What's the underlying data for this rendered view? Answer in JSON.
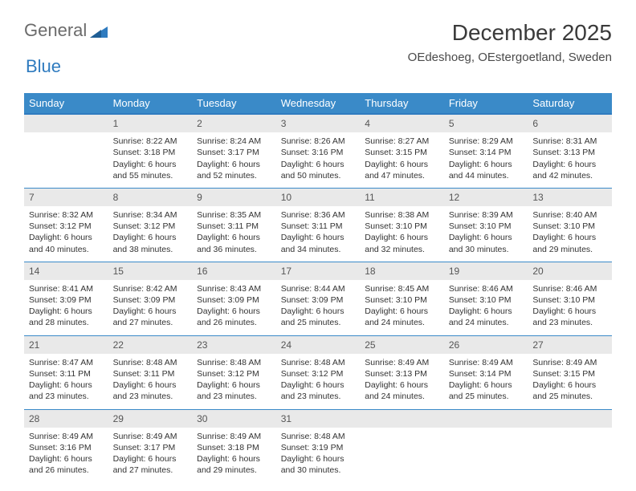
{
  "logo": {
    "text1": "General",
    "text2": "Blue",
    "icon_color": "#2f7bbf"
  },
  "title": "December 2025",
  "location": "OEdeshoeg, OEstergoetland, Sweden",
  "day_headers": [
    "Sunday",
    "Monday",
    "Tuesday",
    "Wednesday",
    "Thursday",
    "Friday",
    "Saturday"
  ],
  "colors": {
    "header_bg": "#3a8ac8",
    "header_border": "#2f7bbf",
    "daynum_bg": "#e9e9e9",
    "text": "#333333"
  },
  "weeks": [
    [
      {
        "n": "",
        "sr": "",
        "ss": "",
        "dl": ""
      },
      {
        "n": "1",
        "sr": "Sunrise: 8:22 AM",
        "ss": "Sunset: 3:18 PM",
        "dl": "Daylight: 6 hours and 55 minutes."
      },
      {
        "n": "2",
        "sr": "Sunrise: 8:24 AM",
        "ss": "Sunset: 3:17 PM",
        "dl": "Daylight: 6 hours and 52 minutes."
      },
      {
        "n": "3",
        "sr": "Sunrise: 8:26 AM",
        "ss": "Sunset: 3:16 PM",
        "dl": "Daylight: 6 hours and 50 minutes."
      },
      {
        "n": "4",
        "sr": "Sunrise: 8:27 AM",
        "ss": "Sunset: 3:15 PM",
        "dl": "Daylight: 6 hours and 47 minutes."
      },
      {
        "n": "5",
        "sr": "Sunrise: 8:29 AM",
        "ss": "Sunset: 3:14 PM",
        "dl": "Daylight: 6 hours and 44 minutes."
      },
      {
        "n": "6",
        "sr": "Sunrise: 8:31 AM",
        "ss": "Sunset: 3:13 PM",
        "dl": "Daylight: 6 hours and 42 minutes."
      }
    ],
    [
      {
        "n": "7",
        "sr": "Sunrise: 8:32 AM",
        "ss": "Sunset: 3:12 PM",
        "dl": "Daylight: 6 hours and 40 minutes."
      },
      {
        "n": "8",
        "sr": "Sunrise: 8:34 AM",
        "ss": "Sunset: 3:12 PM",
        "dl": "Daylight: 6 hours and 38 minutes."
      },
      {
        "n": "9",
        "sr": "Sunrise: 8:35 AM",
        "ss": "Sunset: 3:11 PM",
        "dl": "Daylight: 6 hours and 36 minutes."
      },
      {
        "n": "10",
        "sr": "Sunrise: 8:36 AM",
        "ss": "Sunset: 3:11 PM",
        "dl": "Daylight: 6 hours and 34 minutes."
      },
      {
        "n": "11",
        "sr": "Sunrise: 8:38 AM",
        "ss": "Sunset: 3:10 PM",
        "dl": "Daylight: 6 hours and 32 minutes."
      },
      {
        "n": "12",
        "sr": "Sunrise: 8:39 AM",
        "ss": "Sunset: 3:10 PM",
        "dl": "Daylight: 6 hours and 30 minutes."
      },
      {
        "n": "13",
        "sr": "Sunrise: 8:40 AM",
        "ss": "Sunset: 3:10 PM",
        "dl": "Daylight: 6 hours and 29 minutes."
      }
    ],
    [
      {
        "n": "14",
        "sr": "Sunrise: 8:41 AM",
        "ss": "Sunset: 3:09 PM",
        "dl": "Daylight: 6 hours and 28 minutes."
      },
      {
        "n": "15",
        "sr": "Sunrise: 8:42 AM",
        "ss": "Sunset: 3:09 PM",
        "dl": "Daylight: 6 hours and 27 minutes."
      },
      {
        "n": "16",
        "sr": "Sunrise: 8:43 AM",
        "ss": "Sunset: 3:09 PM",
        "dl": "Daylight: 6 hours and 26 minutes."
      },
      {
        "n": "17",
        "sr": "Sunrise: 8:44 AM",
        "ss": "Sunset: 3:09 PM",
        "dl": "Daylight: 6 hours and 25 minutes."
      },
      {
        "n": "18",
        "sr": "Sunrise: 8:45 AM",
        "ss": "Sunset: 3:10 PM",
        "dl": "Daylight: 6 hours and 24 minutes."
      },
      {
        "n": "19",
        "sr": "Sunrise: 8:46 AM",
        "ss": "Sunset: 3:10 PM",
        "dl": "Daylight: 6 hours and 24 minutes."
      },
      {
        "n": "20",
        "sr": "Sunrise: 8:46 AM",
        "ss": "Sunset: 3:10 PM",
        "dl": "Daylight: 6 hours and 23 minutes."
      }
    ],
    [
      {
        "n": "21",
        "sr": "Sunrise: 8:47 AM",
        "ss": "Sunset: 3:11 PM",
        "dl": "Daylight: 6 hours and 23 minutes."
      },
      {
        "n": "22",
        "sr": "Sunrise: 8:48 AM",
        "ss": "Sunset: 3:11 PM",
        "dl": "Daylight: 6 hours and 23 minutes."
      },
      {
        "n": "23",
        "sr": "Sunrise: 8:48 AM",
        "ss": "Sunset: 3:12 PM",
        "dl": "Daylight: 6 hours and 23 minutes."
      },
      {
        "n": "24",
        "sr": "Sunrise: 8:48 AM",
        "ss": "Sunset: 3:12 PM",
        "dl": "Daylight: 6 hours and 23 minutes."
      },
      {
        "n": "25",
        "sr": "Sunrise: 8:49 AM",
        "ss": "Sunset: 3:13 PM",
        "dl": "Daylight: 6 hours and 24 minutes."
      },
      {
        "n": "26",
        "sr": "Sunrise: 8:49 AM",
        "ss": "Sunset: 3:14 PM",
        "dl": "Daylight: 6 hours and 25 minutes."
      },
      {
        "n": "27",
        "sr": "Sunrise: 8:49 AM",
        "ss": "Sunset: 3:15 PM",
        "dl": "Daylight: 6 hours and 25 minutes."
      }
    ],
    [
      {
        "n": "28",
        "sr": "Sunrise: 8:49 AM",
        "ss": "Sunset: 3:16 PM",
        "dl": "Daylight: 6 hours and 26 minutes."
      },
      {
        "n": "29",
        "sr": "Sunrise: 8:49 AM",
        "ss": "Sunset: 3:17 PM",
        "dl": "Daylight: 6 hours and 27 minutes."
      },
      {
        "n": "30",
        "sr": "Sunrise: 8:49 AM",
        "ss": "Sunset: 3:18 PM",
        "dl": "Daylight: 6 hours and 29 minutes."
      },
      {
        "n": "31",
        "sr": "Sunrise: 8:48 AM",
        "ss": "Sunset: 3:19 PM",
        "dl": "Daylight: 6 hours and 30 minutes."
      },
      {
        "n": "",
        "sr": "",
        "ss": "",
        "dl": ""
      },
      {
        "n": "",
        "sr": "",
        "ss": "",
        "dl": ""
      },
      {
        "n": "",
        "sr": "",
        "ss": "",
        "dl": ""
      }
    ]
  ]
}
